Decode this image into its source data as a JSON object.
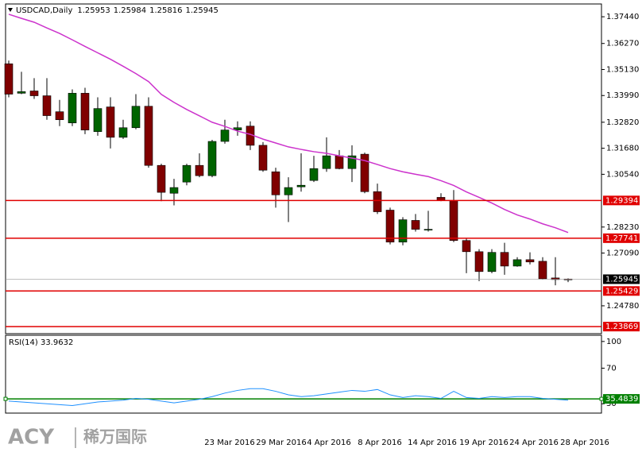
{
  "chart_data": {
    "type": "candlestick",
    "title": "USDCAD,Daily",
    "open": [
      1.3538,
      1.3409,
      1.3419,
      1.3398,
      1.3328,
      1.3279,
      1.3409,
      1.3241,
      1.3349,
      1.3216,
      1.3258,
      1.3352,
      1.3093,
      1.2971,
      1.302,
      1.3093,
      1.3048,
      1.3198,
      1.3248,
      1.3265,
      1.3181,
      1.3065,
      1.2964,
      1.2999,
      1.3027,
      1.3079,
      1.3135,
      1.3079,
      1.3142,
      1.2978,
      1.2897,
      1.2757,
      1.2852,
      1.2813,
      1.2953,
      1.2939,
      1.2764,
      1.2715,
      1.2628,
      1.2712,
      1.2652,
      1.268,
      1.2673,
      1.26,
      1.25953
    ],
    "high": [
      1.3552,
      1.3503,
      1.3475,
      1.3475,
      1.338,
      1.3426,
      1.3433,
      1.3391,
      1.3391,
      1.3293,
      1.3405,
      1.3391,
      1.31,
      1.3034,
      1.31,
      1.3146,
      1.3205,
      1.3293,
      1.3286,
      1.3286,
      1.3195,
      1.3083,
      1.3041,
      1.3146,
      1.3135,
      1.3216,
      1.316,
      1.3181,
      1.3149,
      1.3013,
      1.2908,
      1.2866,
      1.288,
      1.2894,
      1.2971,
      1.2985,
      1.2775,
      1.2726,
      1.2726,
      1.2754,
      1.2691,
      1.2712,
      1.2691,
      1.2691,
      1.25984
    ],
    "low": [
      1.3391,
      1.3405,
      1.3384,
      1.3293,
      1.3265,
      1.3265,
      1.323,
      1.3223,
      1.3167,
      1.3209,
      1.3251,
      1.3083,
      1.2936,
      1.2918,
      1.3006,
      1.3041,
      1.3041,
      1.3188,
      1.3223,
      1.316,
      1.3065,
      1.2908,
      1.2845,
      1.2978,
      1.302,
      1.3065,
      1.3076,
      1.302,
      1.2971,
      1.288,
      1.2747,
      1.2743,
      1.2803,
      1.2803,
      1.2936,
      1.2757,
      1.2621,
      1.2586,
      1.2621,
      1.2614,
      1.2649,
      1.2659,
      1.2593,
      1.2568,
      1.25816
    ],
    "close": [
      1.3405,
      1.3416,
      1.3398,
      1.3311,
      1.3293,
      1.3409,
      1.3248,
      1.3342,
      1.3216,
      1.3258,
      1.3352,
      1.3093,
      1.2975,
      1.2996,
      1.3093,
      1.3048,
      1.3198,
      1.3248,
      1.3258,
      1.3181,
      1.3072,
      1.2964,
      1.2996,
      1.3006,
      1.3079,
      1.3135,
      1.3079,
      1.3135,
      1.2978,
      1.289,
      1.2757,
      1.2855,
      1.2813,
      1.2813,
      1.2939,
      1.2764,
      1.2715,
      1.2628,
      1.2712,
      1.2652,
      1.268,
      1.267,
      1.2596,
      1.2593,
      1.25945
    ],
    "up_color": "#006400",
    "down_color": "#800000",
    "ma": {
      "color": "#cc33cc",
      "values": [
        1.3755,
        1.3737,
        1.372,
        1.3695,
        1.3671,
        1.3643,
        1.3614,
        1.3586,
        1.3558,
        1.3527,
        1.3495,
        1.346,
        1.3404,
        1.3369,
        1.3338,
        1.331,
        1.3282,
        1.3264,
        1.3243,
        1.3229,
        1.3208,
        1.3191,
        1.3174,
        1.3163,
        1.3153,
        1.3146,
        1.3135,
        1.3125,
        1.3114,
        1.3097,
        1.3079,
        1.3065,
        1.3054,
        1.3044,
        1.3026,
        1.3005,
        1.2977,
        1.2953,
        1.2928,
        1.29,
        1.2876,
        1.2858,
        1.2837,
        1.282,
        1.2799
      ]
    },
    "ylim": [
      1.2356,
      1.38
    ],
    "yticks": [
      {
        "value": 1.3744,
        "label": "1.37440"
      },
      {
        "value": 1.3627,
        "label": "1.36270"
      },
      {
        "value": 1.3513,
        "label": "1.35130"
      },
      {
        "value": 1.3399,
        "label": "1.33990"
      },
      {
        "value": 1.3282,
        "label": "1.32820"
      },
      {
        "value": 1.3168,
        "label": "1.31680"
      },
      {
        "value": 1.3054,
        "label": "1.30540"
      },
      {
        "value": 1.2823,
        "label": "1.28230"
      },
      {
        "value": 1.2709,
        "label": "1.27090"
      },
      {
        "value": 1.2478,
        "label": "1.24780"
      }
    ],
    "levels": [
      1.29394,
      1.27741,
      1.25429,
      1.23869
    ],
    "level_color": "#e00000",
    "x_labels": [
      "23 Mar 2016",
      "29 Mar 2016",
      "4 Apr 2016",
      "8 Apr 2016",
      "14 Apr 2016",
      "19 Apr 2016",
      "24 Apr 2016",
      "28 Apr 2016"
    ],
    "rsi": {
      "title": "RSI(14) 33.9632",
      "color": "#1e90ff",
      "values": [
        33,
        32,
        31,
        30,
        29,
        28,
        30,
        32,
        33,
        34,
        36,
        35,
        33,
        31,
        33,
        35,
        38,
        42,
        45,
        47,
        47,
        44,
        40,
        38,
        39,
        41,
        43,
        45,
        44,
        46,
        40,
        37,
        39,
        38,
        36,
        44,
        37,
        36,
        38,
        37,
        38,
        38,
        36,
        35,
        33.9632
      ],
      "ylim": [
        19.5,
        107
      ],
      "yticks": [
        100,
        70,
        30
      ],
      "level": 35.4839,
      "level_color": "#008000"
    }
  },
  "logo": {
    "brand": "ACY",
    "name": "稀万国际"
  }
}
